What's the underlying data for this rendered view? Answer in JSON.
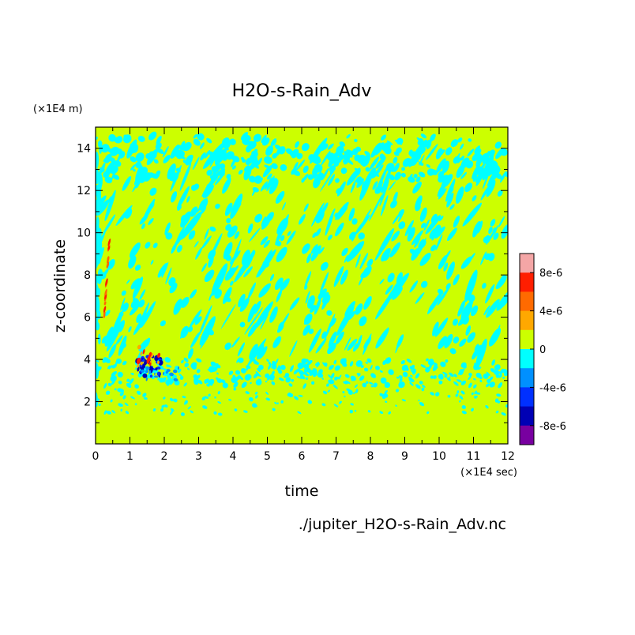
{
  "chart_data": {
    "type": "heatmap",
    "title": "H2O-s-Rain_Adv",
    "xlabel": "time",
    "ylabel": "z-coordinate",
    "x_unit": "(×1E4 sec)",
    "y_unit": "(×1E4 m)",
    "source_file": "./jupiter_H2O-s-Rain_Adv.nc",
    "xlim": [
      0,
      12
    ],
    "ylim": [
      0,
      15
    ],
    "x_ticks": [
      0,
      1,
      2,
      3,
      4,
      5,
      6,
      7,
      8,
      9,
      10,
      11,
      12
    ],
    "y_ticks": [
      2,
      4,
      6,
      8,
      10,
      12,
      14
    ],
    "colorbar": {
      "min": -1e-05,
      "max": 1e-05,
      "tick_labels": [
        "8e-6",
        "4e-6",
        "0",
        "-4e-6",
        "-8e-6"
      ],
      "tick_values": [
        8e-06,
        4e-06,
        0,
        -4e-06,
        -8e-06
      ],
      "colors": [
        "#f4a6a6",
        "#ff1e00",
        "#ff6a00",
        "#ffa800",
        "#ccff00",
        "#00ffff",
        "#0090ff",
        "#0030ff",
        "#0000b4",
        "#7800a0"
      ]
    },
    "background_value": 0,
    "features": [
      {
        "x_range": [
          0.3,
          0.4
        ],
        "z_range": [
          6,
          9.6
        ],
        "sign": "positive"
      },
      {
        "x_range": [
          1.2,
          1.9
        ],
        "z_range": [
          3.2,
          4.6
        ],
        "sign": "mixed"
      },
      {
        "x_range": [
          0,
          12
        ],
        "z_range": [
          2.8,
          3.6
        ],
        "sign": "negative"
      },
      {
        "x_range": [
          0,
          12
        ],
        "z_range": [
          12.7,
          14.3
        ],
        "sign": "negative"
      }
    ]
  }
}
